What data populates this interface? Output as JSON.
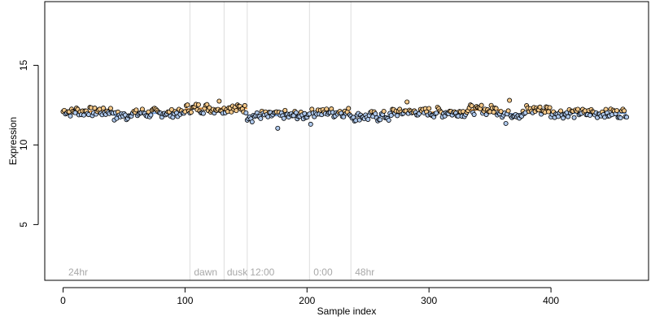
{
  "chart_data": {
    "type": "scatter",
    "title": "",
    "xlabel": "Sample index",
    "ylabel": "Expression",
    "xlim": [
      -15,
      480
    ],
    "ylim": [
      1.5,
      19
    ],
    "xticks": [
      0,
      100,
      200,
      300,
      400
    ],
    "yticks": [
      5,
      10,
      15
    ],
    "grid": false,
    "legend": "none",
    "colors": {
      "point_high": "#f5c98a",
      "point_low": "#aec8ec",
      "mean_high": "#e8953a",
      "mean_low": "#6f9bd8",
      "separator": "#dddddd",
      "annotation": "#a8a8a8"
    },
    "separators": [
      104,
      132,
      151,
      202,
      236
    ],
    "annotations": [
      {
        "text": "24hr",
        "x": 3
      },
      {
        "text": "dawn",
        "x": 106
      },
      {
        "text": "dusk",
        "x": 133
      },
      {
        "text": "12:00",
        "x": 152
      },
      {
        "text": "0:00",
        "x": 204
      },
      {
        "text": "48hr",
        "x": 238
      }
    ],
    "segments": [
      {
        "x": [
          0,
          42
        ],
        "mean": 12.1
      },
      {
        "x": [
          42,
          55
        ],
        "mean": 11.85
      },
      {
        "x": [
          55,
          100
        ],
        "mean": 12.0
      },
      {
        "x": [
          100,
          104
        ],
        "mean": 12.25
      },
      {
        "x": [
          104,
          151
        ],
        "mean": 12.3
      },
      {
        "x": [
          151,
          202
        ],
        "mean": 11.85
      },
      {
        "x": [
          202,
          236
        ],
        "mean": 12.05
      },
      {
        "x": [
          236,
          270
        ],
        "mean": 11.8
      },
      {
        "x": [
          270,
          330
        ],
        "mean": 12.05
      },
      {
        "x": [
          330,
          360
        ],
        "mean": 12.2
      },
      {
        "x": [
          360,
          380
        ],
        "mean": 11.95
      },
      {
        "x": [
          380,
          400
        ],
        "mean": 12.2
      },
      {
        "x": [
          400,
          462
        ],
        "mean": 12.0
      }
    ],
    "outliers": [
      {
        "x": 176,
        "y": 11.05
      },
      {
        "x": 203,
        "y": 11.3
      },
      {
        "x": 363,
        "y": 11.35
      },
      {
        "x": 155,
        "y": 11.45
      },
      {
        "x": 282,
        "y": 12.7
      },
      {
        "x": 128,
        "y": 12.75
      },
      {
        "x": 366,
        "y": 12.8
      }
    ]
  }
}
